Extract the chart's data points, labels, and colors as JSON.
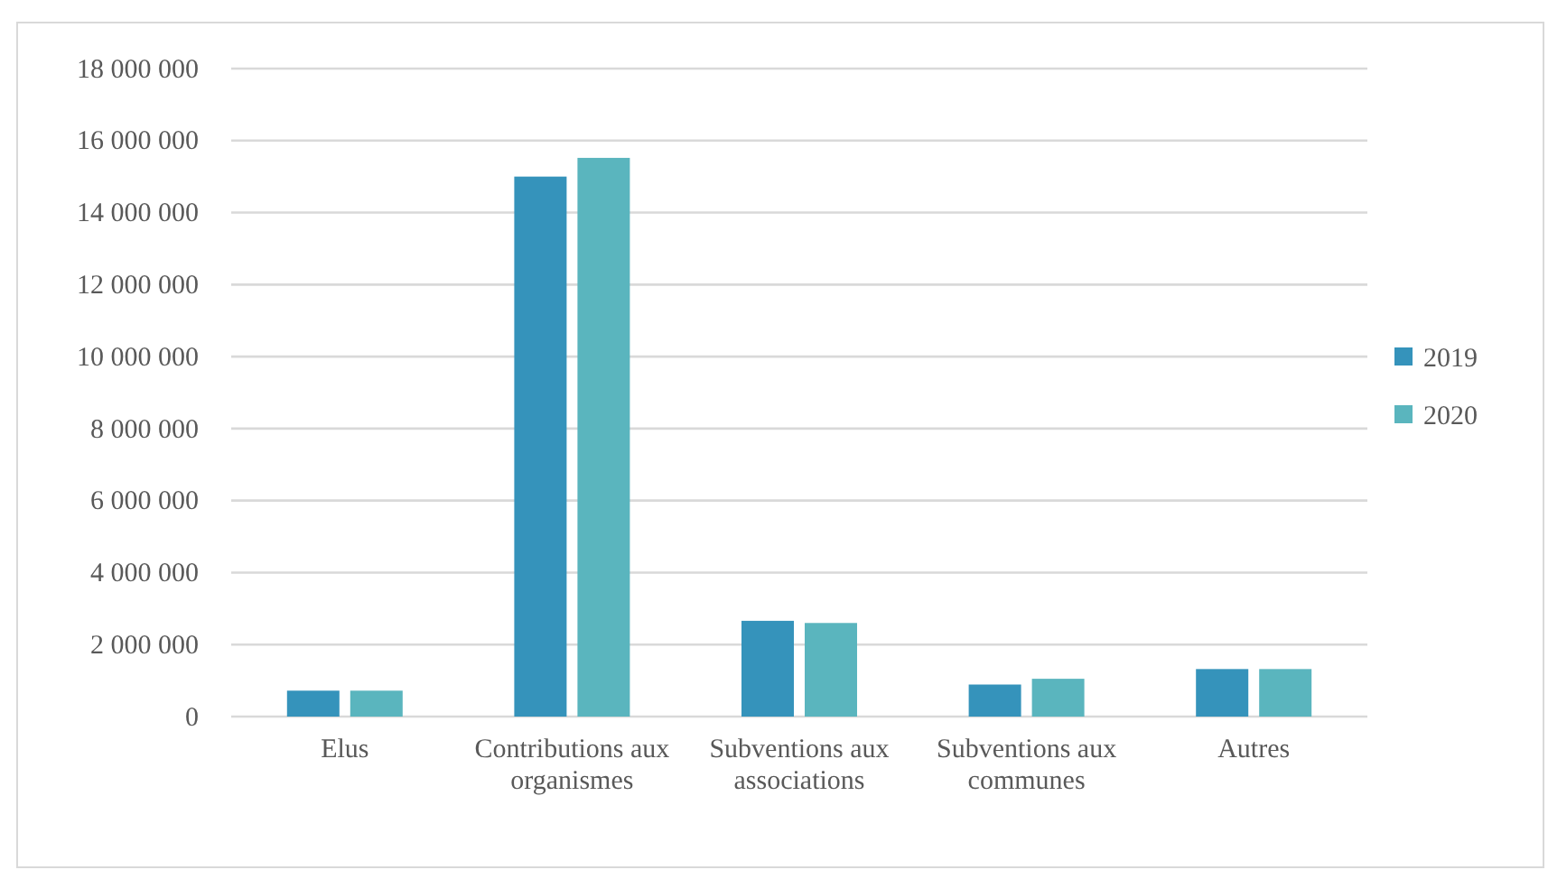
{
  "chart_data": {
    "type": "bar",
    "categories": [
      "Elus",
      "Contributions aux organismes",
      "Subventions aux associations",
      "Subventions aux communes",
      "Autres"
    ],
    "series": [
      {
        "name": "2019",
        "color": "#3593bb",
        "values": [
          720000,
          15000000,
          2660000,
          890000,
          1320000
        ]
      },
      {
        "name": "2020",
        "color": "#5ab5be",
        "values": [
          720000,
          15520000,
          2600000,
          1050000,
          1320000
        ]
      }
    ],
    "ylim": [
      0,
      18000000
    ],
    "yticks": [
      {
        "value": 0,
        "label": "0"
      },
      {
        "value": 2000000,
        "label": "2 000 000"
      },
      {
        "value": 4000000,
        "label": "4 000 000"
      },
      {
        "value": 6000000,
        "label": "6 000 000"
      },
      {
        "value": 8000000,
        "label": "8 000 000"
      },
      {
        "value": 10000000,
        "label": "10 000 000"
      },
      {
        "value": 12000000,
        "label": "12 000 000"
      },
      {
        "value": 14000000,
        "label": "14 000 000"
      },
      {
        "value": 16000000,
        "label": "16 000 000"
      },
      {
        "value": 18000000,
        "label": "18 000 000"
      }
    ],
    "grid": "y",
    "legend": "right"
  }
}
